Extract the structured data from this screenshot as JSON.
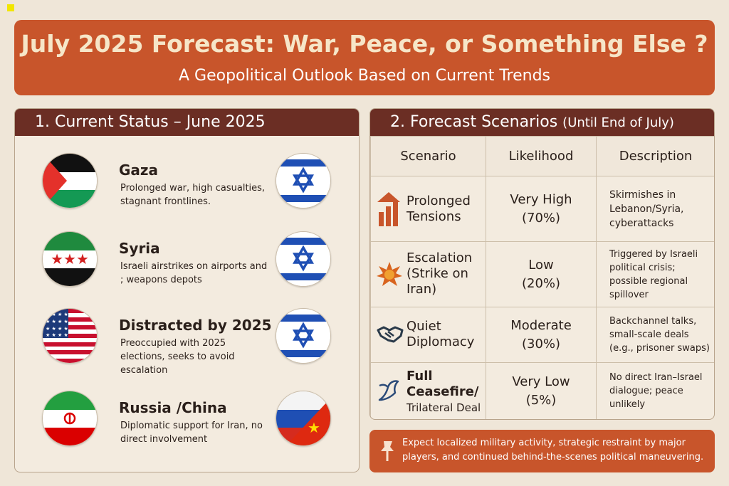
{
  "header": {
    "title": "July 2025 Forecast: War, Peace, or Something Else ?",
    "subtitle": "A Geopolitical Outlook Based on Current Trends"
  },
  "status": {
    "heading": "1. Current Status  – June 2025",
    "items": [
      {
        "title": "Gaza",
        "desc": "Prolonged war, high casualties, stagnant frontlines.",
        "left_flag": "palestine-flag",
        "right_flag": "israel-flag"
      },
      {
        "title": "Syria",
        "desc": "Israeli airstrikes on airports and ; weapons depots",
        "left_flag": "syria-flag",
        "right_flag": "israel-flag"
      },
      {
        "title": "Distracted by 2025",
        "desc": "Preoccupied with 2025 elections, seeks to avoid escalation",
        "left_flag": "usa-flag",
        "right_flag": "israel-flag"
      },
      {
        "title": "Russia /China",
        "desc": "Diplomatic support for Iran, no direct involvement",
        "left_flag": "iran-flag",
        "right_flag": "russia-china-flag"
      }
    ]
  },
  "forecast": {
    "heading": "2. Forecast Scenarios",
    "heading_suffix": "(Until End of July)",
    "columns": [
      "Scenario",
      "Likelihood",
      "Description"
    ],
    "rows": [
      {
        "icon": "rising-arrow-chart-icon",
        "name": "Prolonged Tensions",
        "likelihood": "Very High",
        "pct": "(70%)",
        "desc": "Skirmishes in Lebanon/Syria, cyberattacks"
      },
      {
        "icon": "explosion-icon",
        "name": "Escalation (Strike on Iran)",
        "likelihood": "Low",
        "pct": "(20%)",
        "desc": "Triggered by Israeli political crisis; possible regional spillover"
      },
      {
        "icon": "handshake-icon",
        "name": "Quiet Diplomacy",
        "likelihood": "Moderate",
        "pct": "(30%)",
        "desc": "Backchannel talks, small-scale deals (e.g., prisoner swaps)"
      },
      {
        "icon": "dove-icon",
        "name": "Full Ceasefire/",
        "name2": "Trilateral Deal",
        "likelihood": "Very Low",
        "pct": "(5%)",
        "desc": "No direct Iran–Israel dialogue; peace unlikely"
      }
    ]
  },
  "note": {
    "icon": "pushpin-icon",
    "text": "Expect localized military activity, strategic restraint by major players, and continued behind-the-scenes political maneuvering."
  },
  "colors": {
    "accent": "#c8552b",
    "panel_header": "#6b2e24",
    "background": "#efe6d8"
  }
}
